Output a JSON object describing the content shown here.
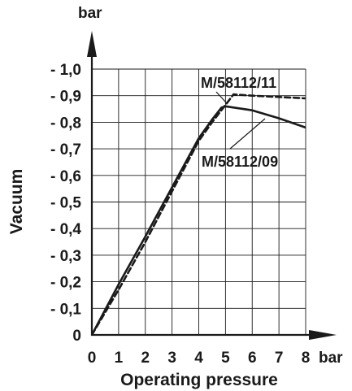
{
  "chart_data": {
    "type": "line",
    "xlabel": "Operating pressure",
    "ylabel": "Vacuum",
    "x_unit": "bar",
    "y_unit": "bar",
    "xlim": [
      0,
      8
    ],
    "ylim": [
      0,
      1.0
    ],
    "x_ticks": [
      0,
      1,
      2,
      3,
      4,
      5,
      6,
      7,
      8
    ],
    "x_tick_labels": [
      "0",
      "1",
      "2",
      "3",
      "4",
      "5",
      "6",
      "7",
      "8"
    ],
    "y_ticks": [
      0,
      0.1,
      0.2,
      0.3,
      0.4,
      0.5,
      0.6,
      0.7,
      0.8,
      0.9,
      1.0
    ],
    "y_tick_labels": [
      "0",
      "- 0,1",
      "- 0,2",
      "- 0,3",
      "- 0,4",
      "- 0,5",
      "- 0,6",
      "- 0,7",
      "- 0,8",
      "- 0,9",
      "- 1,0"
    ],
    "grid": true,
    "series": [
      {
        "name": "M/58112/09",
        "style": "solid",
        "color": "#1a1a1a",
        "x": [
          0,
          1,
          2,
          3,
          4,
          4.5,
          4.85,
          5.0,
          6.0,
          7.0,
          8.0
        ],
        "y": [
          0,
          0.19,
          0.37,
          0.555,
          0.74,
          0.81,
          0.855,
          0.86,
          0.845,
          0.815,
          0.78
        ]
      },
      {
        "name": "M/58112/11",
        "style": "dashed",
        "color": "#1a1a1a",
        "x": [
          0,
          1,
          2,
          3,
          4,
          4.5,
          5.0,
          5.3,
          6.0,
          7.0,
          8.0
        ],
        "y": [
          0,
          0.17,
          0.35,
          0.54,
          0.73,
          0.8,
          0.865,
          0.905,
          0.9,
          0.895,
          0.89
        ]
      }
    ]
  }
}
